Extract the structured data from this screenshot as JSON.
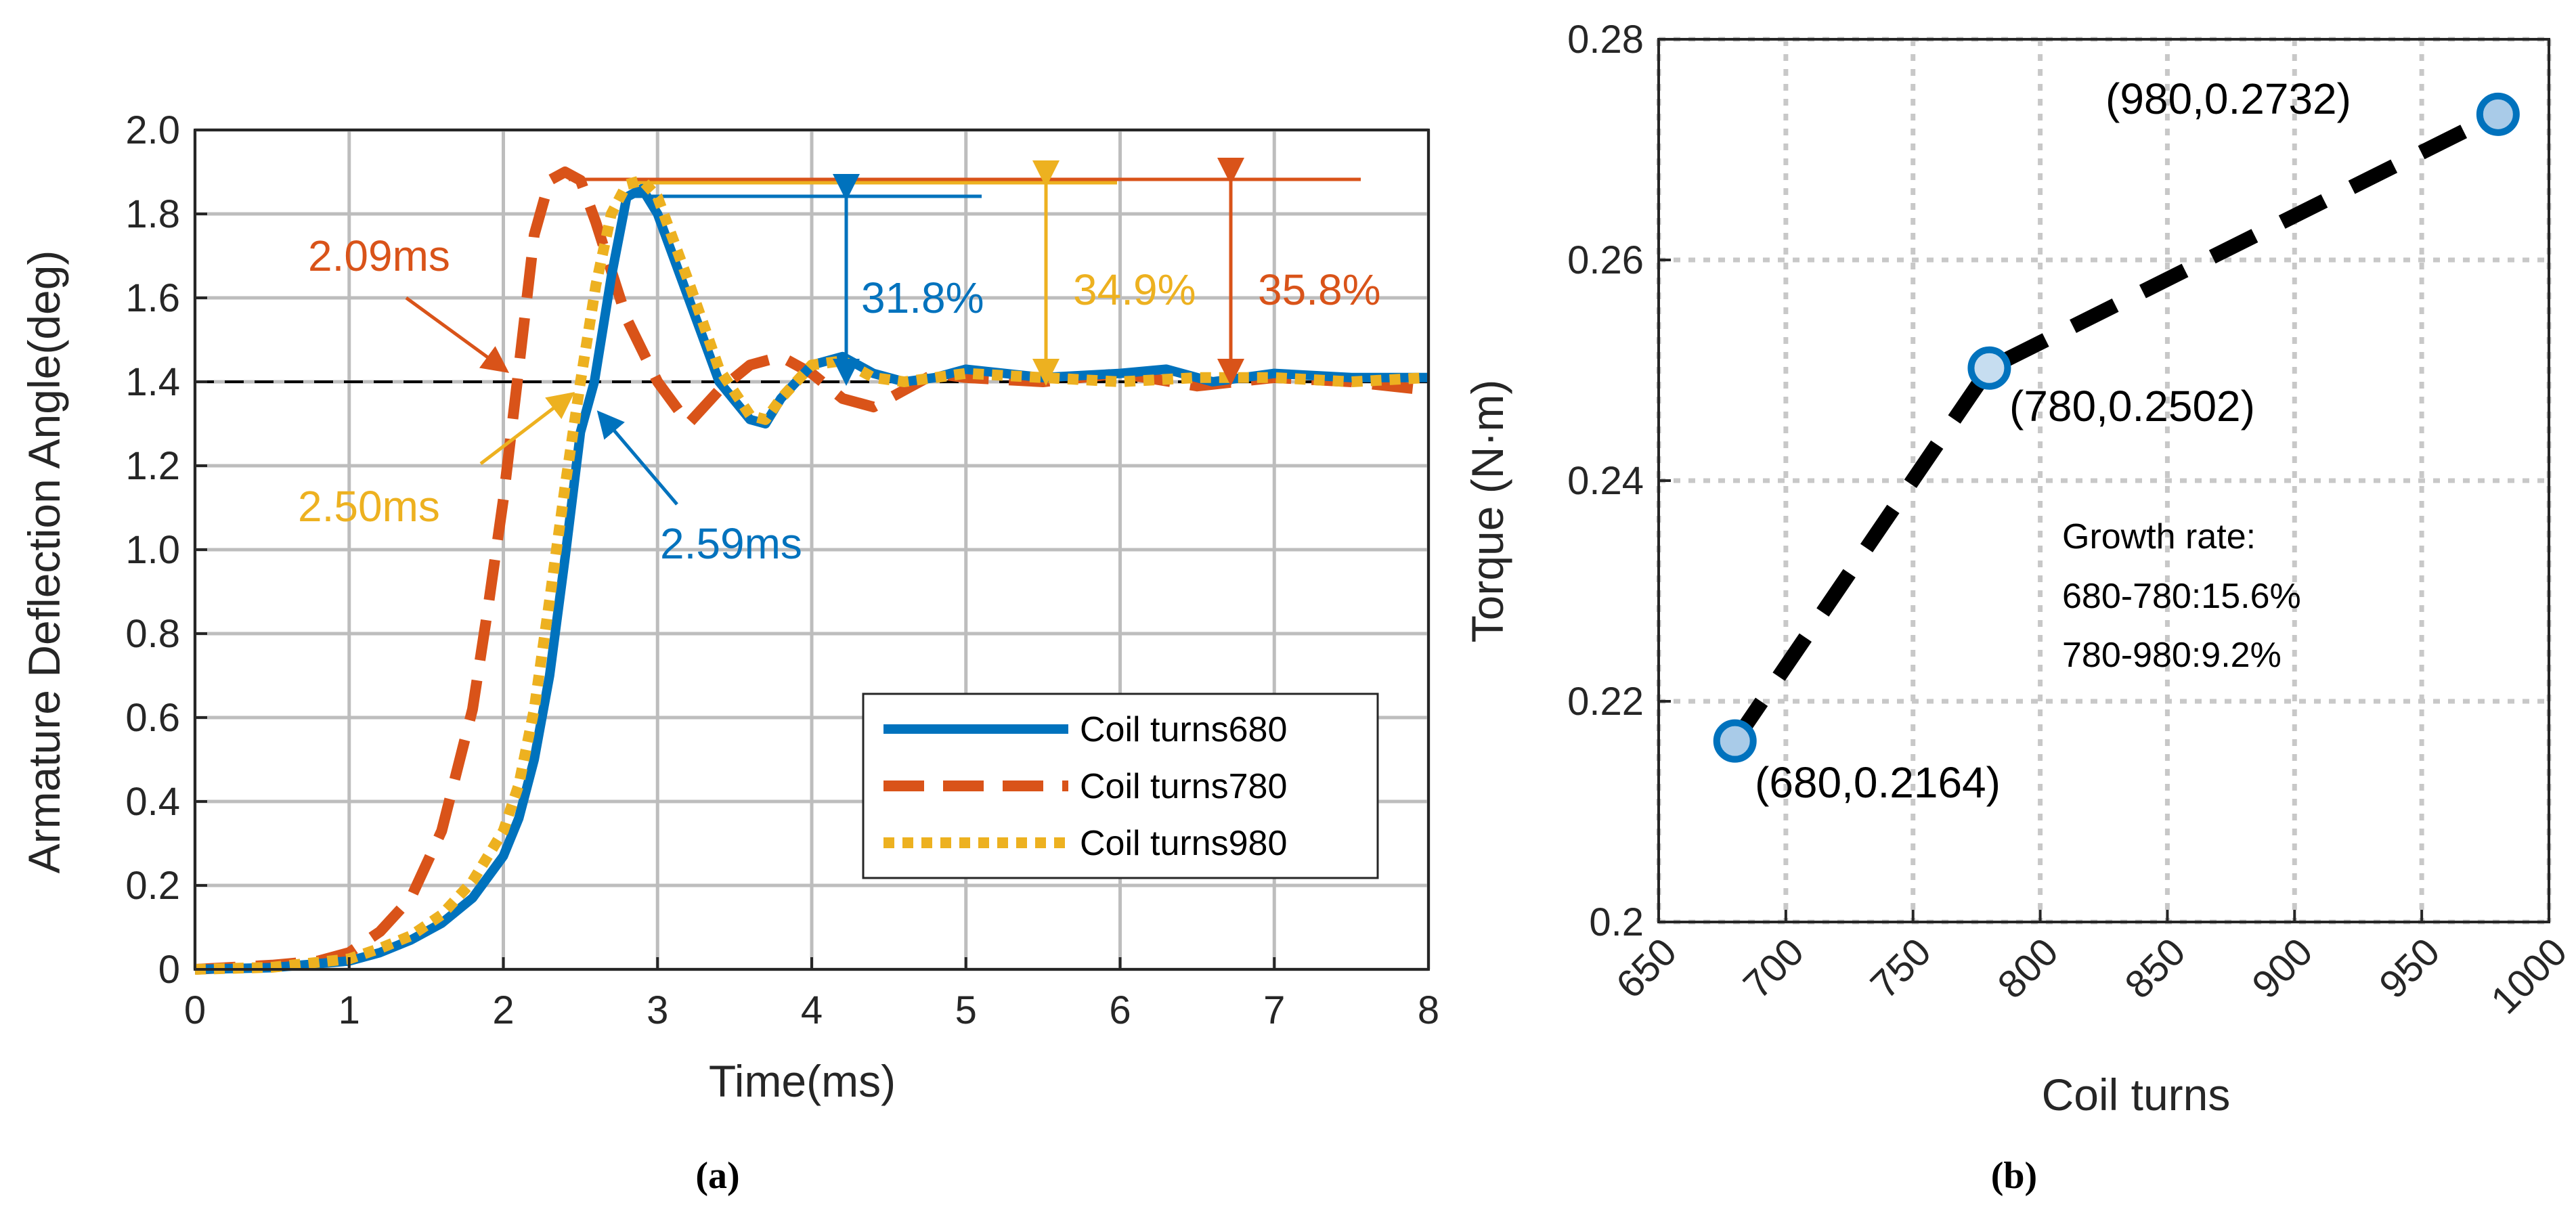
{
  "colors": {
    "blue": "#0072BD",
    "orange": "#D95319",
    "yellow": "#EDB120",
    "black": "#000000",
    "grid": "#bdbdbd",
    "marker_fill": "#7fb6e0"
  },
  "captions": {
    "a": "(a)",
    "b": "(b)"
  },
  "chart_data": [
    {
      "id": "a",
      "type": "line",
      "xlabel": "Time(ms)",
      "ylabel": "Armature Deflection Angle(deg)",
      "xlim": [
        0,
        8
      ],
      "ylim": [
        0,
        2.0
      ],
      "xticks": [
        0,
        1,
        2,
        3,
        4,
        5,
        6,
        7,
        8
      ],
      "yticks": [
        0,
        0.2,
        0.4,
        0.6,
        0.8,
        1.0,
        1.2,
        1.4,
        1.6,
        1.8,
        2.0
      ],
      "xtick_labels": [
        "0",
        "1",
        "2",
        "3",
        "4",
        "5",
        "6",
        "7",
        "8"
      ],
      "ytick_labels": [
        "0",
        "0.2",
        "0.4",
        "0.6",
        "0.8",
        "1.0",
        "1.2",
        "1.4",
        "1.6",
        "1.8",
        "2.0"
      ],
      "grid": true,
      "reference_line": 1.4,
      "series": [
        {
          "name": "Coil turns680",
          "legend": "Coil turns680",
          "color": "#0072BD",
          "style": "solid",
          "x": [
            0,
            0.5,
            1.0,
            1.2,
            1.4,
            1.6,
            1.8,
            2.0,
            2.1,
            2.2,
            2.3,
            2.4,
            2.5,
            2.59,
            2.7,
            2.8,
            2.9,
            3.0,
            3.2,
            3.4,
            3.6,
            3.7,
            3.8,
            4.0,
            4.2,
            4.4,
            4.6,
            4.8,
            5.0,
            5.5,
            6.0,
            6.3,
            6.6,
            7.0,
            7.5,
            8.0
          ],
          "y": [
            0,
            0.004,
            0.02,
            0.04,
            0.07,
            0.11,
            0.17,
            0.27,
            0.36,
            0.5,
            0.7,
            0.98,
            1.28,
            1.4,
            1.65,
            1.84,
            1.86,
            1.8,
            1.6,
            1.4,
            1.31,
            1.3,
            1.36,
            1.44,
            1.46,
            1.42,
            1.4,
            1.41,
            1.43,
            1.41,
            1.42,
            1.43,
            1.4,
            1.42,
            1.41,
            1.41
          ]
        },
        {
          "name": "Coil turns780",
          "legend": "Coil turns780",
          "color": "#D95319",
          "style": "dashed",
          "x": [
            0,
            0.5,
            0.8,
            1.0,
            1.2,
            1.4,
            1.6,
            1.8,
            1.9,
            2.0,
            2.09,
            2.2,
            2.3,
            2.4,
            2.5,
            2.6,
            2.8,
            3.0,
            3.2,
            3.4,
            3.6,
            3.8,
            4.0,
            4.2,
            4.4,
            4.6,
            4.8,
            5.0,
            5.5,
            6.0,
            6.5,
            7.0,
            7.5,
            8.0
          ],
          "y": [
            0,
            0.01,
            0.02,
            0.04,
            0.09,
            0.17,
            0.33,
            0.62,
            0.86,
            1.12,
            1.4,
            1.75,
            1.88,
            1.9,
            1.88,
            1.78,
            1.55,
            1.4,
            1.3,
            1.38,
            1.44,
            1.46,
            1.42,
            1.36,
            1.34,
            1.38,
            1.42,
            1.41,
            1.4,
            1.42,
            1.39,
            1.41,
            1.4,
            1.38
          ]
        },
        {
          "name": "Coil turns980",
          "legend": "Coil turns980",
          "color": "#EDB120",
          "style": "dotted",
          "x": [
            0,
            0.5,
            1.0,
            1.2,
            1.4,
            1.6,
            1.8,
            2.0,
            2.1,
            2.2,
            2.3,
            2.4,
            2.5,
            2.6,
            2.7,
            2.8,
            2.9,
            3.0,
            3.2,
            3.4,
            3.6,
            3.7,
            3.8,
            4.0,
            4.2,
            4.4,
            4.6,
            4.8,
            5.0,
            5.5,
            6.0,
            6.5,
            7.0,
            7.5,
            8.0
          ],
          "y": [
            0,
            0.005,
            0.025,
            0.05,
            0.08,
            0.13,
            0.21,
            0.33,
            0.44,
            0.62,
            0.88,
            1.15,
            1.4,
            1.63,
            1.8,
            1.87,
            1.88,
            1.84,
            1.64,
            1.43,
            1.32,
            1.31,
            1.36,
            1.44,
            1.45,
            1.41,
            1.4,
            1.41,
            1.42,
            1.41,
            1.4,
            1.41,
            1.41,
            1.4,
            1.41
          ]
        }
      ],
      "annotations": {
        "t780": "2.09ms",
        "t980": "2.50ms",
        "t680": "2.59ms",
        "os680": "31.8%",
        "os980": "34.9%",
        "os780": "35.8%"
      }
    },
    {
      "id": "b",
      "type": "line",
      "xlabel": "Coil turns",
      "ylabel": "Torque (N·m)",
      "xlim": [
        650,
        1000
      ],
      "ylim": [
        0.2,
        0.28
      ],
      "xticks": [
        650,
        700,
        750,
        800,
        850,
        900,
        950,
        1000
      ],
      "yticks": [
        0.2,
        0.22,
        0.24,
        0.26,
        0.28
      ],
      "xtick_labels": [
        "650",
        "700",
        "750",
        "800",
        "850",
        "900",
        "950",
        "1000"
      ],
      "ytick_labels": [
        "0.2",
        "0.22",
        "0.24",
        "0.26",
        "0.28"
      ],
      "grid": true,
      "series": [
        {
          "name": "Torque",
          "color": "#000000",
          "style": "dashed",
          "x": [
            680,
            780,
            980
          ],
          "y": [
            0.2164,
            0.2502,
            0.2732
          ]
        }
      ],
      "point_labels": [
        "(680,0.2164)",
        "(780,0.2502)",
        "(980,0.2732)"
      ],
      "text_box": [
        "Growth rate:",
        "680-780:15.6%",
        "780-980:9.2%"
      ]
    }
  ]
}
